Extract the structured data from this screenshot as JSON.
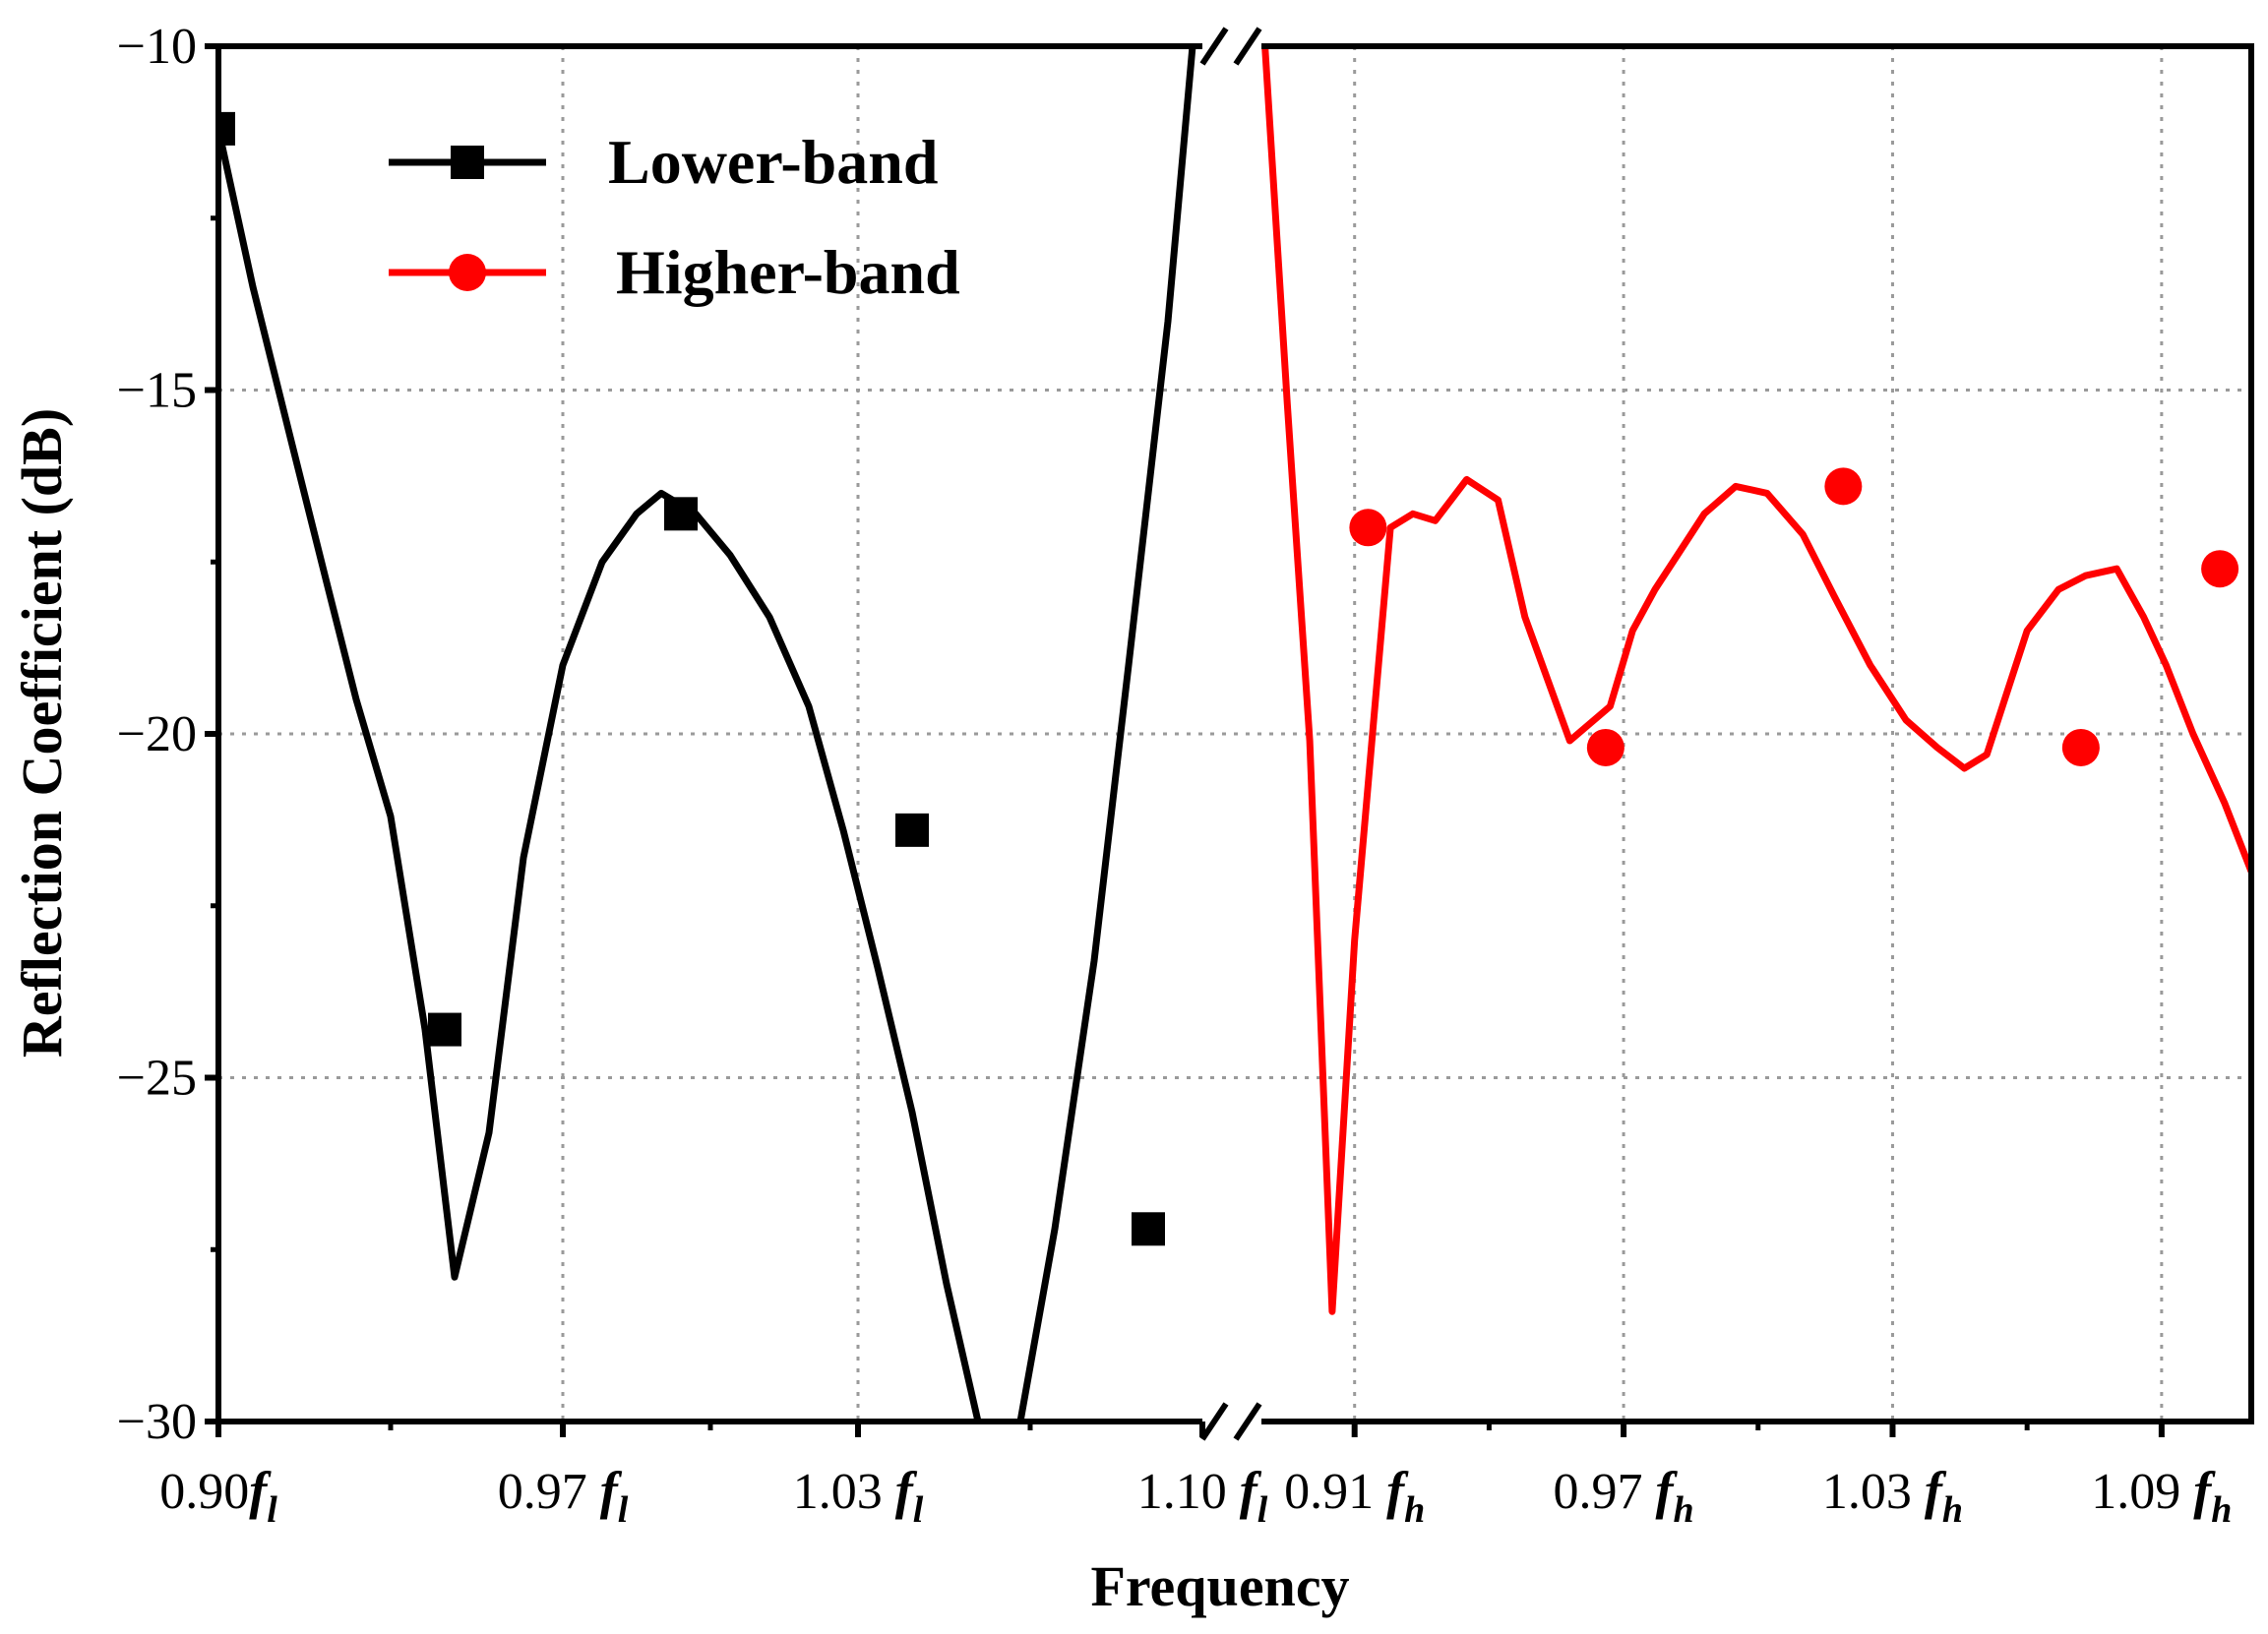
{
  "chart_data": {
    "type": "line",
    "title": "",
    "xlabel": "Frequency",
    "ylabel": "Reflection Coefficient (dB)",
    "ylim": [
      -30,
      -10
    ],
    "yticks": [
      -10,
      -15,
      -20,
      -25,
      -30
    ],
    "ytick_labels": [
      "−10",
      "−15",
      "−20",
      "−25",
      "−30"
    ],
    "grid": true,
    "axis_break": true,
    "legend_position": "top-left",
    "panels": [
      {
        "series": "Lower-band",
        "xlim": [
          0.9,
          1.1
        ],
        "xticks": [
          {
            "value": 0.9,
            "num": "0.90",
            "f": "f",
            "sub": "l"
          },
          {
            "value": 0.97,
            "num": "0.97 ",
            "f": "f",
            "sub": "l"
          },
          {
            "value": 1.03,
            "num": "1.03 ",
            "f": "f",
            "sub": "l"
          },
          {
            "value": 1.1,
            "num": "1.10 ",
            "f": "f",
            "sub": "l"
          }
        ]
      },
      {
        "series": "Higher-band",
        "xlim": [
          0.88,
          1.11
        ],
        "xticks": [
          {
            "value": 0.91,
            "num": "0.91 ",
            "f": "f",
            "sub": "h"
          },
          {
            "value": 0.97,
            "num": "0.97 ",
            "f": "f",
            "sub": "h"
          },
          {
            "value": 1.03,
            "num": "1.03 ",
            "f": "f",
            "sub": "h"
          },
          {
            "value": 1.09,
            "num": "1.09 ",
            "f": "f",
            "sub": "h"
          }
        ]
      }
    ],
    "series": [
      {
        "name": "Lower-band",
        "color": "#000000",
        "marker": "square",
        "x": [
          0.9,
          0.907,
          0.915,
          0.922,
          0.928,
          0.935,
          0.942,
          0.948,
          0.955,
          0.962,
          0.97,
          0.978,
          0.985,
          0.99,
          0.997,
          1.004,
          1.012,
          1.02,
          1.027,
          1.034,
          1.041,
          1.048,
          1.056,
          1.063,
          1.07,
          1.078,
          1.085,
          1.093,
          1.098
        ],
        "y": [
          -11.2,
          -13.5,
          -15.8,
          -17.8,
          -19.5,
          -21.2,
          -24.3,
          -27.9,
          -25.8,
          -21.8,
          -19.0,
          -17.5,
          -16.8,
          -16.5,
          -16.8,
          -17.4,
          -18.3,
          -19.6,
          -21.4,
          -23.4,
          -25.5,
          -28.0,
          -30.5,
          -30.0,
          -27.2,
          -23.3,
          -19.0,
          -14.0,
          -10.0
        ],
        "marker_x": [
          0.9,
          0.946,
          0.994,
          1.041,
          1.089
        ],
        "marker_y": [
          -11.2,
          -24.3,
          -16.8,
          -21.4,
          -27.2
        ]
      },
      {
        "name": "Higher-band",
        "color": "#ff0000",
        "marker": "circle",
        "x": [
          0.89,
          0.895,
          0.9,
          0.905,
          0.91,
          0.918,
          0.923,
          0.928,
          0.935,
          0.942,
          0.948,
          0.958,
          0.967,
          0.972,
          0.977,
          0.982,
          0.988,
          0.995,
          1.002,
          1.01,
          1.017,
          1.025,
          1.033,
          1.04,
          1.046,
          1.051,
          1.055,
          1.06,
          1.067,
          1.073,
          1.08,
          1.086,
          1.091,
          1.097,
          1.104,
          1.11
        ],
        "y": [
          -10.0,
          -15.2,
          -20.1,
          -28.4,
          -23.0,
          -17.0,
          -16.8,
          -16.9,
          -16.3,
          -16.6,
          -18.3,
          -20.1,
          -19.6,
          -18.5,
          -17.9,
          -17.4,
          -16.8,
          -16.4,
          -16.5,
          -17.1,
          -18.0,
          -19.0,
          -19.8,
          -20.2,
          -20.5,
          -20.3,
          -19.5,
          -18.5,
          -17.9,
          -17.7,
          -17.6,
          -18.3,
          -19.0,
          -20.0,
          -21.0,
          -22.0
        ],
        "marker_x": [
          0.913,
          0.966,
          1.019,
          1.072,
          1.103
        ],
        "marker_y": [
          -17.0,
          -20.2,
          -16.4,
          -20.2,
          -17.6
        ]
      }
    ]
  }
}
